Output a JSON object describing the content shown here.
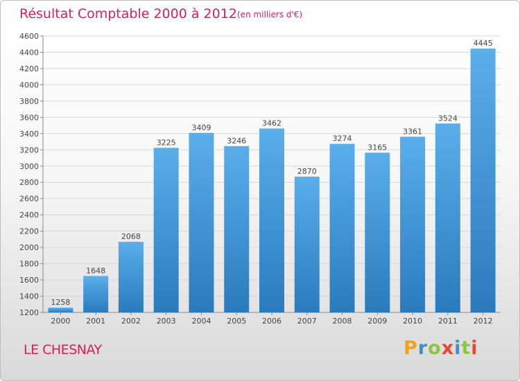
{
  "header": {
    "title": "Résultat Comptable 2000 à 2012",
    "subtitle": "(en milliers d'€)"
  },
  "footer": {
    "commune": "LE CHESNAY",
    "logo_text": "Proxiti"
  },
  "colors": {
    "title": "#d81f5b",
    "bar_light": "#5aaeea",
    "bar_dark": "#2a7bbd",
    "logo_letters": [
      "#f0a21a",
      "#3d8fd0",
      "#8cc63e",
      "#e8452c",
      "#3d8fd0",
      "#8cc63e",
      "#e8452c"
    ]
  },
  "chart_data": {
    "type": "bar",
    "categories": [
      "2000",
      "2001",
      "2002",
      "2003",
      "2004",
      "2005",
      "2006",
      "2007",
      "2008",
      "2009",
      "2010",
      "2011",
      "2012"
    ],
    "values": [
      1258,
      1648,
      2068,
      3225,
      3409,
      3246,
      3462,
      2870,
      3274,
      3165,
      3361,
      3524,
      4445
    ],
    "title": "Résultat Comptable 2000 à 2012",
    "xlabel": "",
    "ylabel": "",
    "ylim": [
      1200,
      4600
    ],
    "yticks": [
      1200,
      1400,
      1600,
      1800,
      2000,
      2200,
      2400,
      2600,
      2800,
      3000,
      3200,
      3400,
      3600,
      3800,
      4000,
      4200,
      4400,
      4600
    ],
    "grid": true,
    "data_labels": true
  }
}
